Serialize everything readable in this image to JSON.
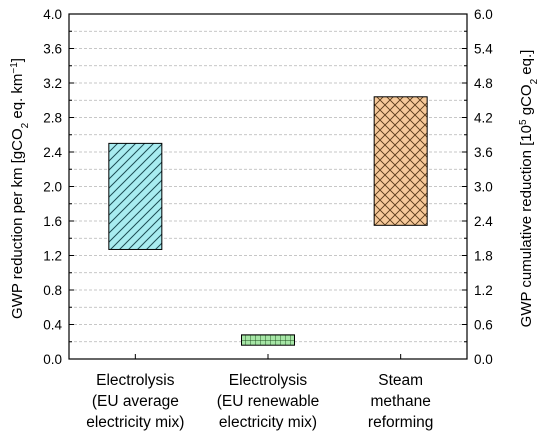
{
  "chart_data": {
    "type": "floating-bar",
    "categories": [
      [
        "Electrolysis",
        "(EU average",
        "electricity mix)"
      ],
      [
        "Electrolysis",
        "(EU renewable",
        "electricity mix)"
      ],
      [
        "Steam",
        "methane",
        "reforming"
      ]
    ],
    "ranges": [
      {
        "low": 1.27,
        "high": 2.5,
        "fill": "#a8ecf0",
        "pattern": "diagonal-hatch"
      },
      {
        "low": 0.16,
        "high": 0.28,
        "fill": "#a6e6a6",
        "pattern": "grid"
      },
      {
        "low": 1.55,
        "high": 3.04,
        "fill": "#f6c99a",
        "pattern": "cross-hatch"
      }
    ],
    "y_left": {
      "label_parts": [
        "GWP reduction per km [gCO",
        "2",
        " eq. km",
        "−1",
        "]"
      ],
      "ylim": [
        0,
        4.0
      ],
      "ticks": [
        "0.0",
        "0.4",
        "0.8",
        "1.2",
        "1.6",
        "2.0",
        "2.4",
        "2.8",
        "3.2",
        "3.6",
        "4.0"
      ]
    },
    "y_right": {
      "label_parts": [
        "GWP cumulative reduction [10",
        "5",
        " gCO",
        "2",
        " eq.]"
      ],
      "ylim": [
        0,
        6.0
      ],
      "ticks": [
        "0.0",
        "0.6",
        "1.2",
        "1.8",
        "2.4",
        "3.0",
        "3.6",
        "4.2",
        "4.8",
        "5.4",
        "6.0"
      ]
    },
    "grid": true,
    "grid_style": "dashed-horizontal"
  }
}
